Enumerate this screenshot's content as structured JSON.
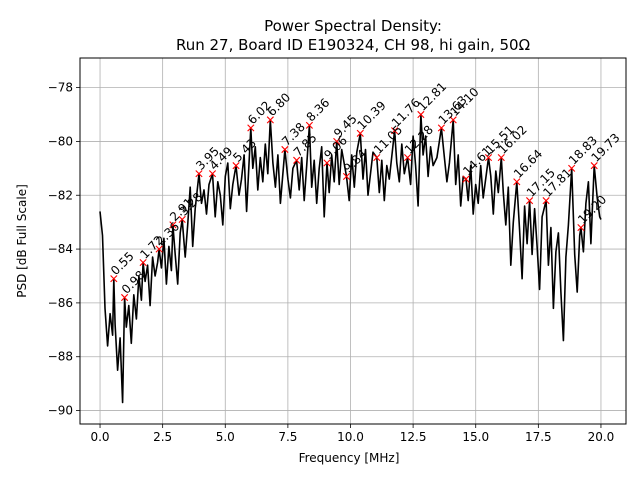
{
  "chart_data": {
    "type": "line",
    "title_line1": "Power Spectral Density:",
    "title_line2": "Run 27, Board ID E190324, CH 98, hi gain, 50Ω",
    "xlabel": "Frequency [MHz]",
    "ylabel": "PSD [dB Full Scale]",
    "xlim": [
      -0.8,
      21.0
    ],
    "ylim": [
      -90.5,
      -76.9
    ],
    "grid": true,
    "xticks": [
      0.0,
      2.5,
      5.0,
      7.5,
      10.0,
      12.5,
      15.0,
      17.5,
      20.0
    ],
    "xtick_labels": [
      "0.0",
      "2.5",
      "5.0",
      "7.5",
      "10.0",
      "12.5",
      "15.0",
      "17.5",
      "20.0"
    ],
    "yticks": [
      -90,
      -88,
      -86,
      -84,
      -82,
      -80,
      -78
    ],
    "ytick_labels": [
      "−90",
      "−88",
      "−86",
      "−84",
      "−82",
      "−80",
      "−78"
    ],
    "line_color": "#000000",
    "marker_color": "#ff0000",
    "series": [
      {
        "x": [
          0.0,
          0.1,
          0.2,
          0.3,
          0.4,
          0.5,
          0.55,
          0.6,
          0.7,
          0.8,
          0.9,
          0.98,
          1.05,
          1.15,
          1.25,
          1.35,
          1.45,
          1.55,
          1.65,
          1.72,
          1.8,
          1.9,
          2.0,
          2.1,
          2.2,
          2.3,
          2.36,
          2.45,
          2.55,
          2.65,
          2.75,
          2.85,
          2.91,
          3.0,
          3.1,
          3.2,
          3.28,
          3.4,
          3.5,
          3.6,
          3.7,
          3.8,
          3.95,
          4.05,
          4.15,
          4.25,
          4.35,
          4.49,
          4.6,
          4.7,
          4.8,
          4.9,
          5.0,
          5.1,
          5.2,
          5.3,
          5.43,
          5.55,
          5.65,
          5.75,
          5.85,
          6.02,
          6.1,
          6.2,
          6.3,
          6.4,
          6.5,
          6.6,
          6.7,
          6.8,
          6.9,
          7.0,
          7.1,
          7.2,
          7.38,
          7.5,
          7.6,
          7.7,
          7.85,
          7.95,
          8.05,
          8.15,
          8.25,
          8.36,
          8.45,
          8.55,
          8.65,
          8.75,
          8.85,
          8.95,
          9.06,
          9.15,
          9.25,
          9.35,
          9.45,
          9.55,
          9.65,
          9.84,
          9.95,
          10.05,
          10.15,
          10.25,
          10.39,
          10.5,
          10.6,
          10.7,
          10.8,
          10.9,
          11.05,
          11.15,
          11.25,
          11.35,
          11.45,
          11.55,
          11.76,
          11.85,
          11.95,
          12.05,
          12.15,
          12.28,
          12.4,
          12.5,
          12.6,
          12.7,
          12.81,
          12.9,
          13.0,
          13.1,
          13.2,
          13.3,
          13.45,
          13.63,
          13.75,
          13.85,
          13.95,
          14.1,
          14.2,
          14.3,
          14.4,
          14.5,
          14.61,
          14.7,
          14.8,
          14.9,
          15.0,
          15.1,
          15.2,
          15.3,
          15.51,
          15.6,
          15.7,
          15.8,
          15.9,
          16.02,
          16.1,
          16.2,
          16.3,
          16.4,
          16.5,
          16.64,
          16.75,
          16.85,
          16.95,
          17.05,
          17.15,
          17.25,
          17.35,
          17.45,
          17.55,
          17.65,
          17.81,
          17.9,
          18.0,
          18.1,
          18.2,
          18.3,
          18.4,
          18.5,
          18.6,
          18.7,
          18.83,
          18.95,
          19.05,
          19.15,
          19.2,
          19.3,
          19.4,
          19.5,
          19.6,
          19.73,
          19.85,
          19.95,
          20.0
        ],
        "y": [
          -82.6,
          -83.5,
          -86.2,
          -87.6,
          -86.4,
          -87.2,
          -85.1,
          -86.8,
          -88.5,
          -87.3,
          -89.7,
          -85.8,
          -86.9,
          -86.1,
          -87.5,
          -85.7,
          -86.6,
          -85.0,
          -85.9,
          -84.5,
          -85.2,
          -84.6,
          -86.1,
          -84.3,
          -85.0,
          -84.5,
          -84.0,
          -84.7,
          -83.6,
          -85.3,
          -83.9,
          -84.8,
          -83.1,
          -84.2,
          -85.3,
          -83.4,
          -82.9,
          -84.3,
          -83.1,
          -81.7,
          -83.9,
          -82.5,
          -81.2,
          -82.3,
          -81.8,
          -82.7,
          -81.6,
          -81.2,
          -82.8,
          -81.5,
          -82.0,
          -83.1,
          -81.3,
          -80.8,
          -82.5,
          -81.6,
          -80.9,
          -82.0,
          -81.4,
          -80.5,
          -82.6,
          -79.5,
          -81.0,
          -80.2,
          -81.8,
          -80.6,
          -81.5,
          -80.1,
          -81.2,
          -79.2,
          -80.8,
          -81.7,
          -80.5,
          -82.3,
          -80.3,
          -81.4,
          -82.1,
          -81.0,
          -80.7,
          -81.8,
          -80.6,
          -82.2,
          -80.9,
          -79.4,
          -81.7,
          -80.7,
          -82.3,
          -81.0,
          -80.2,
          -82.8,
          -80.8,
          -81.9,
          -80.5,
          -81.5,
          -80.0,
          -81.6,
          -80.3,
          -81.3,
          -82.2,
          -80.5,
          -81.7,
          -80.4,
          -79.7,
          -81.4,
          -80.3,
          -82.0,
          -81.2,
          -80.4,
          -80.6,
          -81.9,
          -80.7,
          -82.2,
          -80.9,
          -81.4,
          -79.6,
          -80.8,
          -81.5,
          -80.1,
          -81.2,
          -80.6,
          -81.6,
          -79.8,
          -80.9,
          -82.4,
          -79.0,
          -80.5,
          -79.8,
          -81.3,
          -80.2,
          -80.9,
          -80.6,
          -79.5,
          -80.6,
          -81.5,
          -80.8,
          -79.2,
          -81.6,
          -80.5,
          -82.4,
          -81.3,
          -81.4,
          -82.2,
          -80.9,
          -82.7,
          -81.6,
          -82.3,
          -80.9,
          -82.1,
          -80.6,
          -81.3,
          -82.7,
          -81.1,
          -81.9,
          -80.6,
          -81.9,
          -83.1,
          -81.7,
          -84.6,
          -83.0,
          -81.5,
          -83.3,
          -85.1,
          -82.4,
          -83.8,
          -82.2,
          -84.2,
          -82.5,
          -83.9,
          -85.5,
          -82.8,
          -82.2,
          -84.6,
          -83.2,
          -86.2,
          -84.1,
          -83.4,
          -85.6,
          -87.4,
          -84.3,
          -83.1,
          -81.0,
          -84.2,
          -85.6,
          -83.5,
          -83.2,
          -84.1,
          -82.3,
          -81.5,
          -83.8,
          -80.9,
          -82.1,
          -82.8,
          -82.9
        ]
      }
    ],
    "peaks": [
      {
        "x": 0.55,
        "y": -85.1,
        "label": "0.55"
      },
      {
        "x": 0.98,
        "y": -85.8,
        "label": "0.98"
      },
      {
        "x": 1.72,
        "y": -84.5,
        "label": "1.72"
      },
      {
        "x": 2.36,
        "y": -84.0,
        "label": "2.36"
      },
      {
        "x": 2.91,
        "y": -83.1,
        "label": "2.91"
      },
      {
        "x": 3.28,
        "y": -82.9,
        "label": "3.28"
      },
      {
        "x": 3.95,
        "y": -81.2,
        "label": "3.95"
      },
      {
        "x": 4.49,
        "y": -81.2,
        "label": "4.49"
      },
      {
        "x": 5.43,
        "y": -80.9,
        "label": "5.43"
      },
      {
        "x": 6.02,
        "y": -79.5,
        "label": "6.02"
      },
      {
        "x": 6.8,
        "y": -79.2,
        "label": "6.80"
      },
      {
        "x": 7.38,
        "y": -80.3,
        "label": "7.38"
      },
      {
        "x": 7.85,
        "y": -80.7,
        "label": "7.85"
      },
      {
        "x": 8.36,
        "y": -79.4,
        "label": "8.36"
      },
      {
        "x": 9.06,
        "y": -80.8,
        "label": "9.06"
      },
      {
        "x": 9.45,
        "y": -80.0,
        "label": "9.45"
      },
      {
        "x": 9.84,
        "y": -81.3,
        "label": "9.84"
      },
      {
        "x": 10.39,
        "y": -79.7,
        "label": "10.39"
      },
      {
        "x": 11.05,
        "y": -80.6,
        "label": "11.05"
      },
      {
        "x": 11.76,
        "y": -79.6,
        "label": "11.76"
      },
      {
        "x": 12.28,
        "y": -80.6,
        "label": "12.28"
      },
      {
        "x": 12.81,
        "y": -79.0,
        "label": "12.81"
      },
      {
        "x": 13.63,
        "y": -79.5,
        "label": "13.63"
      },
      {
        "x": 14.1,
        "y": -79.2,
        "label": "14.10"
      },
      {
        "x": 14.61,
        "y": -81.4,
        "label": "14.61"
      },
      {
        "x": 15.51,
        "y": -80.6,
        "label": "15.51"
      },
      {
        "x": 16.02,
        "y": -80.6,
        "label": "16.02"
      },
      {
        "x": 16.64,
        "y": -81.5,
        "label": "16.64"
      },
      {
        "x": 17.15,
        "y": -82.2,
        "label": "17.15"
      },
      {
        "x": 17.81,
        "y": -82.2,
        "label": "17.81"
      },
      {
        "x": 18.83,
        "y": -81.0,
        "label": "18.83"
      },
      {
        "x": 19.2,
        "y": -83.2,
        "label": "19.20"
      },
      {
        "x": 19.73,
        "y": -80.9,
        "label": "19.73"
      }
    ]
  }
}
